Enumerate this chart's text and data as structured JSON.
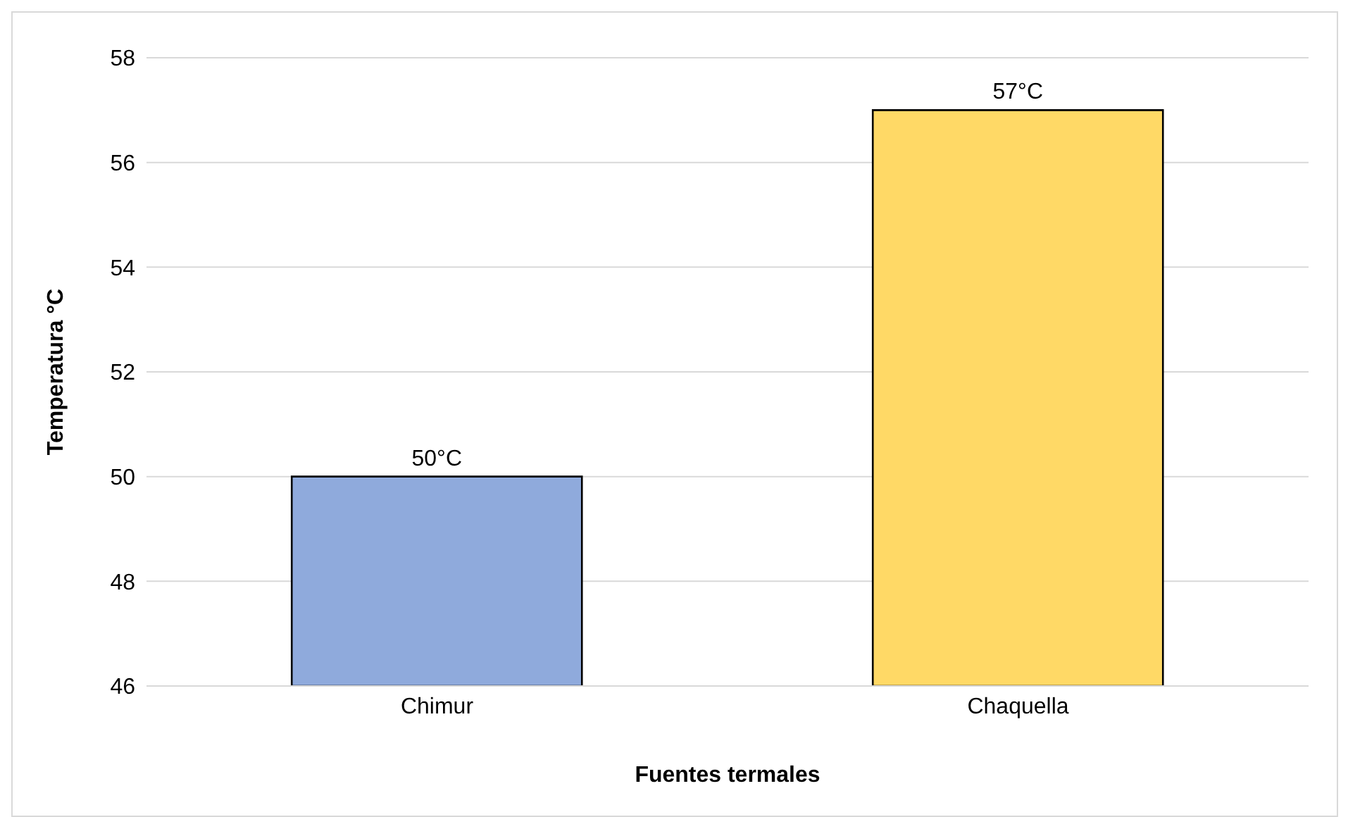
{
  "chart_data": {
    "type": "bar",
    "xlabel": "Fuentes termales",
    "ylabel": "Temperatura °C",
    "categories": [
      "Chimur",
      "Chaquella"
    ],
    "values": [
      50,
      57
    ],
    "colors": [
      "#8faadc",
      "#ffd966"
    ],
    "value_labels": [
      "50°C",
      "57°C"
    ],
    "ylim": [
      46,
      58
    ],
    "yticks": [
      46,
      48,
      50,
      52,
      54,
      56,
      58
    ],
    "grid": "y"
  }
}
